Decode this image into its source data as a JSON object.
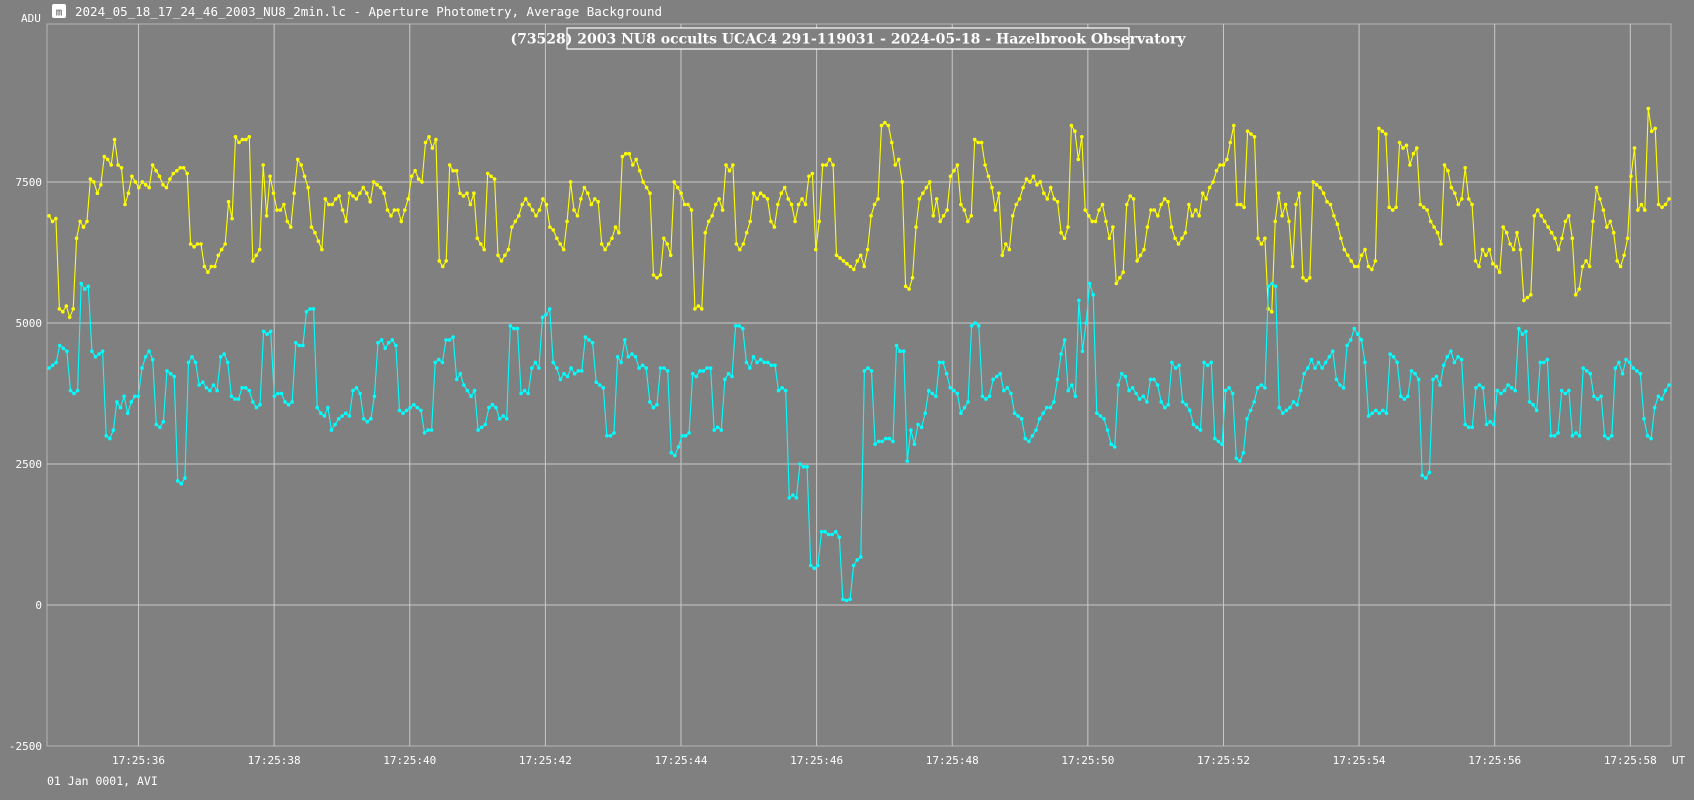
{
  "window": {
    "title": "2024_05_18_17_24_46_2003_NU8_2min.lc - Aperture Photometry, Average Background",
    "icon": "lightcurve-app-icon"
  },
  "footer": {
    "date_label": "01 Jan 0001, AVI"
  },
  "chart_data": {
    "type": "line",
    "title": "(73528) 2003 NU8 occults UCAC4 291-119031 - 2024-05-18 - Hazelbrook Observatory",
    "ylabel": "ADU",
    "xlabel": "UT",
    "ylim": [
      -2500,
      10300
    ],
    "y_ticks": [
      -2500,
      0,
      2500,
      5000,
      7500
    ],
    "y_tick_labels": [
      "-2500",
      "0",
      "2500",
      "5000",
      "7500"
    ],
    "x_tick_labels": [
      "17:25:36",
      "17:25:38",
      "17:25:40",
      "17:25:42",
      "17:25:44",
      "17:25:46",
      "17:25:48",
      "17:25:50",
      "17:25:52",
      "17:25:54",
      "17:25:56",
      "17:25:58"
    ],
    "x_range_seconds": [
      -1.35,
      22.6
    ],
    "grid": true,
    "series": [
      {
        "color": "#ffff00",
        "values": [
          6900,
          6800,
          6850,
          5250,
          5200,
          5300,
          5100,
          5250,
          6500,
          6800,
          6700,
          6800,
          7550,
          7500,
          7300,
          7450,
          7950,
          7900,
          7800,
          8250,
          7800,
          7750,
          7100,
          7300,
          7600,
          7500,
          7400,
          7500,
          7450,
          7400,
          7800,
          7700,
          7600,
          7450,
          7400,
          7550,
          7650,
          7700,
          7750,
          7750,
          7650,
          6400,
          6350,
          6400,
          6400,
          6000,
          5900,
          6000,
          6000,
          6200,
          6300,
          6400,
          7150,
          6850,
          8300,
          8200,
          8250,
          8250,
          8300,
          6100,
          6200,
          6300,
          7800,
          6900,
          7600,
          7300,
          7000,
          7000,
          7100,
          6800,
          6700,
          7300,
          7900,
          7800,
          7600,
          7400,
          6700,
          6600,
          6450,
          6300,
          7200,
          7100,
          7100,
          7200,
          7250,
          7000,
          6800,
          7300,
          7250,
          7200,
          7300,
          7400,
          7300,
          7150,
          7500,
          7450,
          7400,
          7300,
          7000,
          6900,
          7000,
          7000,
          6800,
          7000,
          7200,
          7600,
          7700,
          7550,
          7500,
          8200,
          8300,
          8100,
          8250,
          6100,
          6000,
          6100,
          7800,
          7700,
          7700,
          7300,
          7250,
          7300,
          7100,
          7300,
          6500,
          6400,
          6300,
          7650,
          7600,
          7550,
          6200,
          6100,
          6200,
          6300,
          6700,
          6800,
          6900,
          7100,
          7200,
          7100,
          7000,
          6900,
          7000,
          7200,
          7100,
          6700,
          6650,
          6500,
          6400,
          6300,
          6800,
          7500,
          7000,
          6900,
          7200,
          7400,
          7300,
          7100,
          7200,
          7150,
          6400,
          6300,
          6400,
          6500,
          6700,
          6600,
          7950,
          8000,
          8000,
          7800,
          7900,
          7700,
          7500,
          7400,
          7300,
          5850,
          5800,
          5850,
          6500,
          6400,
          6200,
          7500,
          7400,
          7300,
          7100,
          7100,
          7000,
          5250,
          5300,
          5250,
          6600,
          6800,
          6900,
          7100,
          7200,
          7000,
          7800,
          7700,
          7800,
          6400,
          6300,
          6400,
          6600,
          6800,
          7300,
          7200,
          7300,
          7250,
          7200,
          6800,
          6700,
          7100,
          7300,
          7400,
          7200,
          7100,
          6800,
          7100,
          7200,
          7100,
          7600,
          7650,
          6300,
          6800,
          7800,
          7800,
          7900,
          7800,
          6200,
          6150,
          6100,
          6050,
          6000,
          5950,
          6100,
          6200,
          6000,
          6300,
          6900,
          7100,
          7200,
          8500,
          8550,
          8500,
          8200,
          7800,
          7900,
          7500,
          5650,
          5600,
          5800,
          6700,
          7200,
          7300,
          7400,
          7500,
          6900,
          7200,
          6800,
          6900,
          7000,
          7600,
          7700,
          7800,
          7100,
          7000,
          6800,
          6900,
          8250,
          8200,
          8200,
          7800,
          7600,
          7400,
          7000,
          7300,
          6200,
          6400,
          6300,
          6900,
          7100,
          7200,
          7400,
          7550,
          7500,
          7600,
          7450,
          7500,
          7300,
          7200,
          7400,
          7200,
          7150,
          6600,
          6500,
          6700,
          8500,
          8400,
          7900,
          8300,
          7000,
          6900,
          6800,
          6800,
          7000,
          7100,
          6800,
          6500,
          6700,
          5700,
          5800,
          5900,
          7100,
          7250,
          7200,
          6100,
          6200,
          6300,
          6700,
          7000,
          7000,
          6900,
          7100,
          7200,
          7150,
          6700,
          6500,
          6400,
          6500,
          6600,
          7100,
          6900,
          7000,
          6900,
          7300,
          7200,
          7400,
          7500,
          7700,
          7800,
          7800,
          7900,
          8200,
          8500,
          7100,
          7100,
          7050,
          8400,
          8350,
          8300,
          6500,
          6400,
          6500,
          5250,
          5200,
          6800,
          7300,
          6900,
          7100,
          6800,
          6000,
          7100,
          7300,
          5800,
          5750,
          5800,
          7500,
          7450,
          7400,
          7300,
          7150,
          7100,
          6900,
          6750,
          6500,
          6300,
          6200,
          6100,
          6000,
          6000,
          6200,
          6300,
          6000,
          5950,
          6100,
          8450,
          8400,
          8350,
          7050,
          7000,
          7050,
          8200,
          8100,
          8150,
          7800,
          8000,
          8100,
          7100,
          7050,
          7000,
          6800,
          6700,
          6600,
          6400,
          7800,
          7700,
          7400,
          7300,
          7100,
          7200,
          7750,
          7200,
          7100,
          6100,
          6000,
          6300,
          6200,
          6300,
          6050,
          6000,
          5900,
          6700,
          6600,
          6400,
          6300,
          6600,
          6300,
          5400,
          5450,
          5500,
          6900,
          7000,
          6900,
          6800,
          6700,
          6600,
          6500,
          6300,
          6500,
          6800,
          6900,
          6500,
          5500,
          5600,
          6000,
          6100,
          6000,
          6800,
          7400,
          7200,
          7000,
          6700,
          6800,
          6600,
          6100,
          6000,
          6200,
          6500,
          7600,
          8100,
          7000,
          7100,
          7000,
          8800,
          8400,
          8450,
          7100,
          7050,
          7100,
          7200
        ]
      },
      {
        "color": "#00ffff",
        "values": [
          4200,
          4250,
          4300,
          4600,
          4550,
          4500,
          3800,
          3750,
          3800,
          5700,
          5600,
          5650,
          4500,
          4400,
          4450,
          4500,
          3000,
          2950,
          3100,
          3600,
          3500,
          3700,
          3400,
          3600,
          3700,
          3700,
          4200,
          4400,
          4500,
          4350,
          3200,
          3150,
          3250,
          4150,
          4100,
          4050,
          2200,
          2150,
          2250,
          4300,
          4400,
          4300,
          3900,
          3950,
          3850,
          3800,
          3900,
          3800,
          4400,
          4450,
          4300,
          3700,
          3650,
          3650,
          3850,
          3850,
          3800,
          3600,
          3500,
          3550,
          4850,
          4800,
          4850,
          3700,
          3750,
          3750,
          3600,
          3550,
          3600,
          4650,
          4600,
          4600,
          5200,
          5250,
          5250,
          3500,
          3400,
          3350,
          3500,
          3100,
          3200,
          3300,
          3350,
          3400,
          3350,
          3800,
          3850,
          3750,
          3300,
          3250,
          3300,
          3700,
          4650,
          4700,
          4550,
          4650,
          4700,
          4600,
          3450,
          3400,
          3450,
          3500,
          3550,
          3500,
          3450,
          3050,
          3100,
          3100,
          4300,
          4350,
          4300,
          4700,
          4700,
          4750,
          4000,
          4100,
          3900,
          3800,
          3700,
          3800,
          3100,
          3150,
          3200,
          3500,
          3550,
          3500,
          3300,
          3350,
          3300,
          4950,
          4900,
          4900,
          3750,
          3800,
          3750,
          4200,
          4300,
          4200,
          5100,
          5150,
          5250,
          4300,
          4200,
          4000,
          4100,
          4050,
          4200,
          4100,
          4150,
          4150,
          4750,
          4700,
          4650,
          3950,
          3900,
          3850,
          3000,
          3000,
          3050,
          4400,
          4300,
          4700,
          4400,
          4450,
          4400,
          4200,
          4250,
          4200,
          3600,
          3500,
          3550,
          4200,
          4200,
          4150,
          2700,
          2650,
          2800,
          3000,
          3000,
          3050,
          4100,
          4050,
          4150,
          4150,
          4200,
          4200,
          3100,
          3150,
          3100,
          4000,
          4100,
          4050,
          4950,
          4950,
          4900,
          4300,
          4200,
          4400,
          4300,
          4350,
          4300,
          4300,
          4250,
          4250,
          3800,
          3850,
          3800,
          1900,
          1950,
          1900,
          2500,
          2450,
          2450,
          700,
          650,
          700,
          1300,
          1300,
          1250,
          1250,
          1300,
          1200,
          100,
          80,
          100,
          700,
          800,
          850,
          4150,
          4200,
          4150,
          2850,
          2900,
          2900,
          2950,
          2950,
          2900,
          4600,
          4500,
          4500,
          2550,
          3100,
          2850,
          3200,
          3150,
          3400,
          3800,
          3750,
          3700,
          4300,
          4300,
          4100,
          3850,
          3800,
          3750,
          3400,
          3500,
          3600,
          4950,
          5000,
          4950,
          3700,
          3650,
          3700,
          4000,
          4050,
          4100,
          3800,
          3850,
          3750,
          3400,
          3350,
          3300,
          2950,
          2900,
          3000,
          3100,
          3300,
          3400,
          3500,
          3500,
          3600,
          4000,
          4450,
          4700,
          3800,
          3900,
          3700,
          5400,
          4500,
          5000,
          5700,
          5500,
          3400,
          3350,
          3300,
          3100,
          2850,
          2800,
          3900,
          4100,
          4050,
          3800,
          3850,
          3750,
          3650,
          3700,
          3600,
          4000,
          4000,
          3900,
          3600,
          3500,
          3550,
          4300,
          4200,
          4250,
          3600,
          3550,
          3450,
          3200,
          3150,
          3100,
          4300,
          4250,
          4300,
          2950,
          2900,
          2850,
          3800,
          3850,
          3750,
          2600,
          2550,
          2700,
          3300,
          3450,
          3600,
          3850,
          3900,
          3850,
          5650,
          5700,
          5650,
          3500,
          3400,
          3450,
          3500,
          3600,
          3550,
          3800,
          4100,
          4200,
          4350,
          4200,
          4300,
          4200,
          4300,
          4400,
          4500,
          4000,
          3900,
          3850,
          4600,
          4700,
          4900,
          4800,
          4700,
          4300,
          3350,
          3400,
          3450,
          3400,
          3450,
          3400,
          4450,
          4400,
          4300,
          3700,
          3650,
          3700,
          4150,
          4100,
          4000,
          2300,
          2250,
          2350,
          4000,
          4050,
          3900,
          4250,
          4400,
          4500,
          4300,
          4400,
          4350,
          3200,
          3150,
          3150,
          3850,
          3900,
          3850,
          3200,
          3250,
          3200,
          3800,
          3750,
          3800,
          3900,
          3850,
          3800,
          4900,
          4800,
          4850,
          3600,
          3550,
          3450,
          4300,
          4300,
          4350,
          3000,
          3000,
          3050,
          3800,
          3750,
          3800,
          3000,
          3050,
          3000,
          4200,
          4150,
          4100,
          3700,
          3650,
          3700,
          3000,
          2950,
          3000,
          4200,
          4300,
          4100,
          4350,
          4300,
          4200,
          4150,
          4100,
          3300,
          3000,
          2950,
          3500,
          3700,
          3650,
          3800,
          3900
        ]
      }
    ]
  }
}
